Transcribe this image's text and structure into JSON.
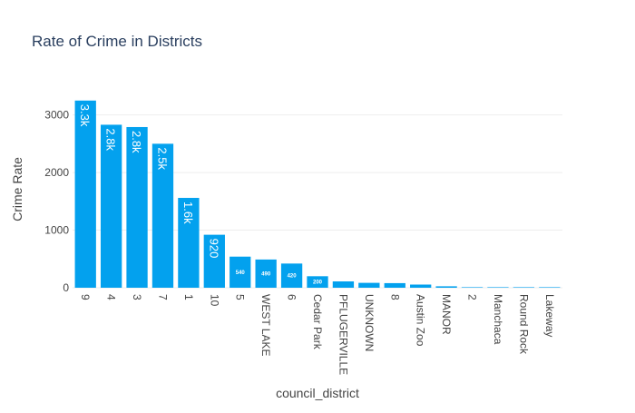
{
  "chart_data": {
    "type": "bar",
    "title": "Rate of Crime in Districts",
    "xlabel": "council_district",
    "ylabel": "Crime Rate",
    "categories": [
      "9",
      "4",
      "3",
      "7",
      "1",
      "10",
      "5",
      "WEST LAKE",
      "6",
      "Cedar Park",
      "PFLUGERVILLE",
      "UNKNOWN",
      "8",
      "Austin Zoo",
      "MANOR",
      "2",
      "Manchaca",
      "Round Rock",
      "Lakeway"
    ],
    "values": [
      3250,
      2830,
      2790,
      2500,
      1560,
      920,
      540,
      490,
      420,
      200,
      110,
      85,
      80,
      55,
      25,
      8,
      5,
      3,
      2
    ],
    "data_labels": [
      "3.3k",
      "2.8k",
      "2.8k",
      "2.5k",
      "1.6k",
      "920",
      "540",
      "490",
      "420",
      "200",
      "",
      "",
      "",
      "",
      "",
      "",
      "",
      "",
      ""
    ],
    "yticks": [
      0,
      1000,
      2000,
      3000
    ],
    "ylim": [
      0,
      3420
    ],
    "grid": true,
    "bar_color": "#03a1ee",
    "label_color": "#ffffff",
    "text_color": "#444444",
    "title_color": "#2a3f5f",
    "grid_color": "#eeeeee"
  }
}
